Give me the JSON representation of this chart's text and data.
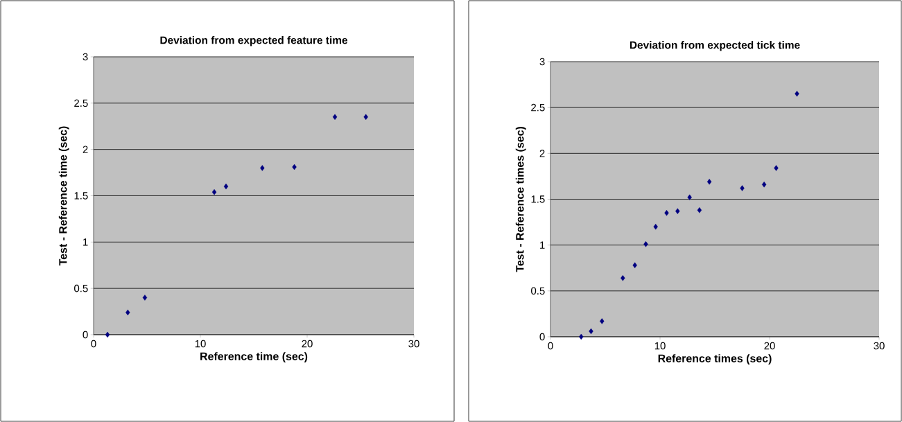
{
  "chart_data": [
    {
      "type": "scatter",
      "title": "Deviation from expected feature time",
      "xlabel": "Reference time (sec)",
      "ylabel": "Test - Reference time (sec)",
      "marker": "diamond",
      "grid": "y",
      "xlim": [
        0,
        30
      ],
      "ylim": [
        0,
        3
      ],
      "xticks": [
        0,
        10,
        20,
        30
      ],
      "yticks": [
        0,
        0.5,
        1,
        1.5,
        2,
        2.5,
        3
      ],
      "series": [
        {
          "color": "#000080",
          "x": [
            1.3,
            3.2,
            4.8,
            11.3,
            12.4,
            15.8,
            18.8,
            22.6,
            25.5
          ],
          "values": [
            0,
            0.24,
            0.4,
            1.54,
            1.6,
            1.8,
            1.81,
            2.35,
            2.35
          ]
        }
      ]
    },
    {
      "type": "scatter",
      "title": "Deviation from expected tick time",
      "xlabel": "Reference times (sec)",
      "ylabel": "Test - Reference times (sec)",
      "marker": "diamond",
      "grid": "y",
      "xlim": [
        0,
        30
      ],
      "ylim": [
        0,
        3
      ],
      "xticks": [
        0,
        10,
        20,
        30
      ],
      "yticks": [
        0,
        0.5,
        1,
        1.5,
        2,
        2.5,
        3
      ],
      "series": [
        {
          "color": "#000080",
          "x": [
            2.8,
            3.7,
            4.7,
            6.6,
            7.7,
            8.7,
            9.6,
            10.6,
            11.6,
            12.7,
            13.6,
            14.5,
            17.5,
            19.5,
            20.6,
            22.5
          ],
          "values": [
            0,
            0.06,
            0.17,
            0.64,
            0.78,
            1.01,
            1.2,
            1.35,
            1.37,
            1.52,
            1.38,
            1.69,
            1.62,
            1.66,
            1.84,
            2.65
          ]
        }
      ]
    }
  ]
}
